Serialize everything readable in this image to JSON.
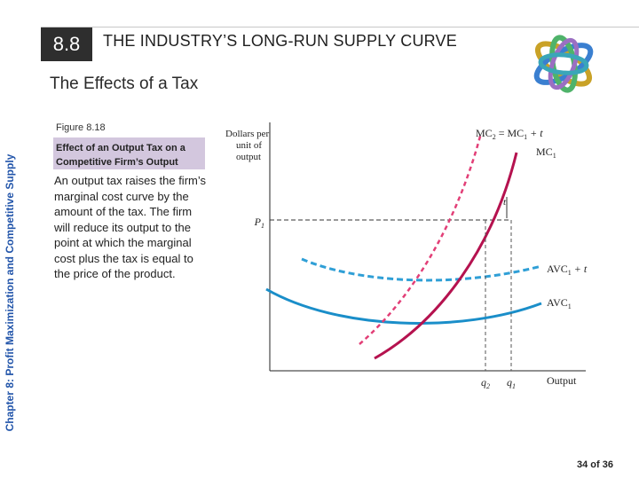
{
  "header": {
    "section_number": "8.8",
    "section_title": "THE INDUSTRY’S LONG-RUN SUPPLY CURVE"
  },
  "subtitle": "The Effects of a Tax",
  "side_label": "Chapter 8:  Profit Maximization and Competitive Supply",
  "figure": {
    "label": "Figure 8.18",
    "caption": "Effect of an Output Tax on a Competitive Firm’s Output",
    "body": "An output tax raises the firm’s marginal cost curve by the amount of the tax. The firm will reduce its output to the point at which the marginal cost plus the tax is equal to the price of the product."
  },
  "chart_data": {
    "type": "line",
    "ylabel": [
      "Dollars per",
      "unit of",
      "output"
    ],
    "xlabel": "Output",
    "price_label": "P1",
    "tax_label": "t",
    "x_tick_labels": [
      "q2",
      "q1"
    ],
    "series": [
      {
        "name": "MC1",
        "label_main": "MC",
        "label_sub": "1",
        "style": "solid",
        "color": "#b5124f"
      },
      {
        "name": "MC2 = MC1 + t",
        "label_main": "MC",
        "label_sub": "2",
        "label_rest": " = MC",
        "label_sub2": "1",
        "label_tail": " + t",
        "style": "dashed",
        "color": "#e23f77"
      },
      {
        "name": "AVC1",
        "label_main": "AVC",
        "label_sub": "1",
        "style": "solid",
        "color": "#1a8ec9"
      },
      {
        "name": "AVC1 + t",
        "label_main": "AVC",
        "label_sub": "1",
        "label_tail": " + t",
        "style": "dashed",
        "color": "#2f9fd6"
      }
    ],
    "grid": false
  },
  "footer": {
    "page": "34 of 36"
  }
}
